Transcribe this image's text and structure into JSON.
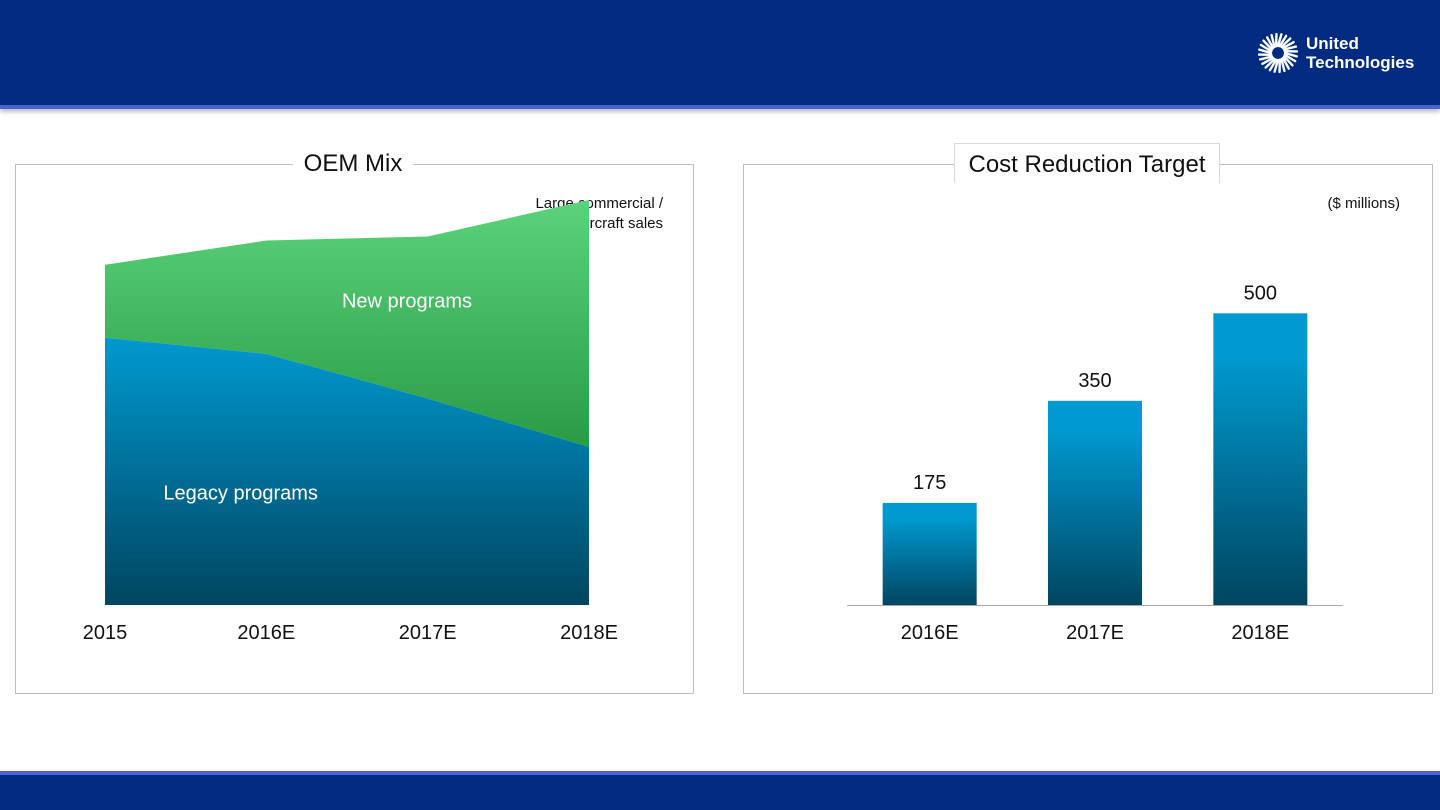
{
  "brand": {
    "line1": "United",
    "line2": "Technologies"
  },
  "colors": {
    "header_bg": "#002b80",
    "header_accent": "#4d61d6",
    "legacy_top": "#0099d0",
    "legacy_bottom": "#004560",
    "new_top": "#5bd37b",
    "new_bottom": "#2a9b45",
    "bar_top": "#0099d0",
    "bar_bottom": "#004560"
  },
  "oem_mix": {
    "title": "OEM Mix",
    "note_line1": "Large commercial /",
    "note_line2": "regional aircraft sales"
  },
  "cost_reduction": {
    "title": "Cost Reduction Target",
    "unit_note": "($ millions)"
  },
  "chart_data": [
    {
      "type": "area",
      "title": "OEM Mix",
      "x": [
        "2015",
        "2016E",
        "2017E",
        "2018E"
      ],
      "series": [
        {
          "name": "Legacy programs",
          "values": [
            66,
            62,
            51,
            39
          ]
        },
        {
          "name": "New programs",
          "values": [
            18,
            28,
            40,
            61
          ]
        }
      ],
      "series_labels_inline": true,
      "ylim": [
        0,
        100
      ],
      "grid": false,
      "stacked": true
    },
    {
      "type": "bar",
      "title": "Cost Reduction Target",
      "categories": [
        "2016E",
        "2017E",
        "2018E"
      ],
      "values": [
        175,
        350,
        500
      ],
      "ylim": [
        0,
        600
      ],
      "data_labels": [
        "175",
        "350",
        "500"
      ],
      "grid": false
    }
  ]
}
